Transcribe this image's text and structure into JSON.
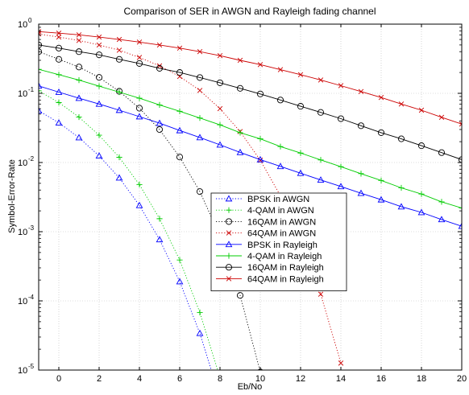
{
  "chart_data": {
    "type": "line",
    "title": "Comparison of SER in AWGN and Rayleigh fading channel",
    "xlabel": "Eb/No",
    "ylabel": "Symbol-Error-Rate",
    "xlim": [
      -1,
      20
    ],
    "ylim": [
      1e-05,
      1
    ],
    "yscale": "log",
    "x_ticks": [
      0,
      2,
      4,
      6,
      8,
      10,
      12,
      14,
      16,
      18,
      20
    ],
    "y_ticks": [
      {
        "value": 1,
        "base": "10",
        "exp": "0"
      },
      {
        "value": 0.1,
        "base": "10",
        "exp": "-1"
      },
      {
        "value": 0.01,
        "base": "10",
        "exp": "-2"
      },
      {
        "value": 0.001,
        "base": "10",
        "exp": "-3"
      },
      {
        "value": 0.0001,
        "base": "10",
        "exp": "-4"
      },
      {
        "value": 1e-05,
        "base": "10",
        "exp": "-5"
      }
    ],
    "grid": true,
    "legend_position": "center",
    "x": [
      -1,
      0,
      1,
      2,
      3,
      4,
      5,
      6,
      7,
      8,
      9,
      10,
      11,
      12,
      13,
      14,
      15,
      16,
      17,
      18,
      19,
      20
    ],
    "series": [
      {
        "name": "BPSK in AWGN",
        "color": "#0000ff",
        "line": "dotted",
        "marker": "triangle",
        "values": [
          0.056,
          0.0375,
          0.0229,
          0.0125,
          0.006,
          0.0024,
          0.00077,
          0.00019,
          3.4e-05,
          3.9e-06,
          null,
          null,
          null,
          null,
          null,
          null,
          null,
          null,
          null,
          null,
          null,
          null
        ]
      },
      {
        "name": "4-QAM in AWGN",
        "color": "#00cc00",
        "line": "dotted",
        "marker": "plus",
        "values": [
          0.109,
          0.0735,
          0.0453,
          0.0248,
          0.0119,
          0.0048,
          0.00154,
          0.00039,
          6.8e-05,
          7.8e-06,
          null,
          null,
          null,
          null,
          null,
          null,
          null,
          null,
          null,
          null,
          null,
          null
        ]
      },
      {
        "name": "16QAM in AWGN",
        "color": "#000000",
        "line": "dotted",
        "marker": "circle",
        "values": [
          0.4,
          0.31,
          0.24,
          0.17,
          0.107,
          0.061,
          0.03,
          0.012,
          0.0038,
          0.00086,
          0.00012,
          9.4e-06,
          null,
          null,
          null,
          null,
          null,
          null,
          null,
          null,
          null,
          null
        ]
      },
      {
        "name": "64QAM in AWGN",
        "color": "#cc0000",
        "line": "dotted",
        "marker": "x",
        "values": [
          0.72,
          0.65,
          0.58,
          0.5,
          0.42,
          0.33,
          0.25,
          0.175,
          0.11,
          0.06,
          0.028,
          0.0108,
          0.0033,
          0.00077,
          0.000125,
          1.26e-05,
          null,
          null,
          null,
          null,
          null,
          null
        ]
      },
      {
        "name": "BPSK in Rayleigh",
        "color": "#0000ff",
        "line": "solid",
        "marker": "triangle",
        "values": [
          0.128,
          0.104,
          0.085,
          0.07,
          0.057,
          0.046,
          0.037,
          0.029,
          0.023,
          0.018,
          0.014,
          0.011,
          0.0088,
          0.007,
          0.0056,
          0.0045,
          0.0036,
          0.0029,
          0.0023,
          0.0019,
          0.0015,
          0.0012
        ]
      },
      {
        "name": "4-QAM in Rayleigh",
        "color": "#00cc00",
        "line": "solid",
        "marker": "plus",
        "values": [
          0.222,
          0.186,
          0.155,
          0.127,
          0.104,
          0.085,
          0.068,
          0.055,
          0.044,
          0.035,
          0.027,
          0.022,
          0.017,
          0.0137,
          0.0109,
          0.0087,
          0.0069,
          0.0055,
          0.0043,
          0.0035,
          0.0027,
          0.0022
        ]
      },
      {
        "name": "16QAM in Rayleigh",
        "color": "#000000",
        "line": "solid",
        "marker": "circle",
        "values": [
          0.5,
          0.45,
          0.4,
          0.36,
          0.31,
          0.27,
          0.23,
          0.2,
          0.169,
          0.142,
          0.118,
          0.098,
          0.08,
          0.065,
          0.053,
          0.043,
          0.034,
          0.027,
          0.022,
          0.0175,
          0.0139,
          0.011
        ]
      },
      {
        "name": "64QAM in Rayleigh",
        "color": "#cc0000",
        "line": "solid",
        "marker": "x",
        "values": [
          0.78,
          0.74,
          0.7,
          0.65,
          0.6,
          0.55,
          0.5,
          0.45,
          0.4,
          0.35,
          0.3,
          0.26,
          0.22,
          0.186,
          0.156,
          0.129,
          0.106,
          0.087,
          0.07,
          0.057,
          0.045,
          0.036
        ]
      }
    ]
  }
}
